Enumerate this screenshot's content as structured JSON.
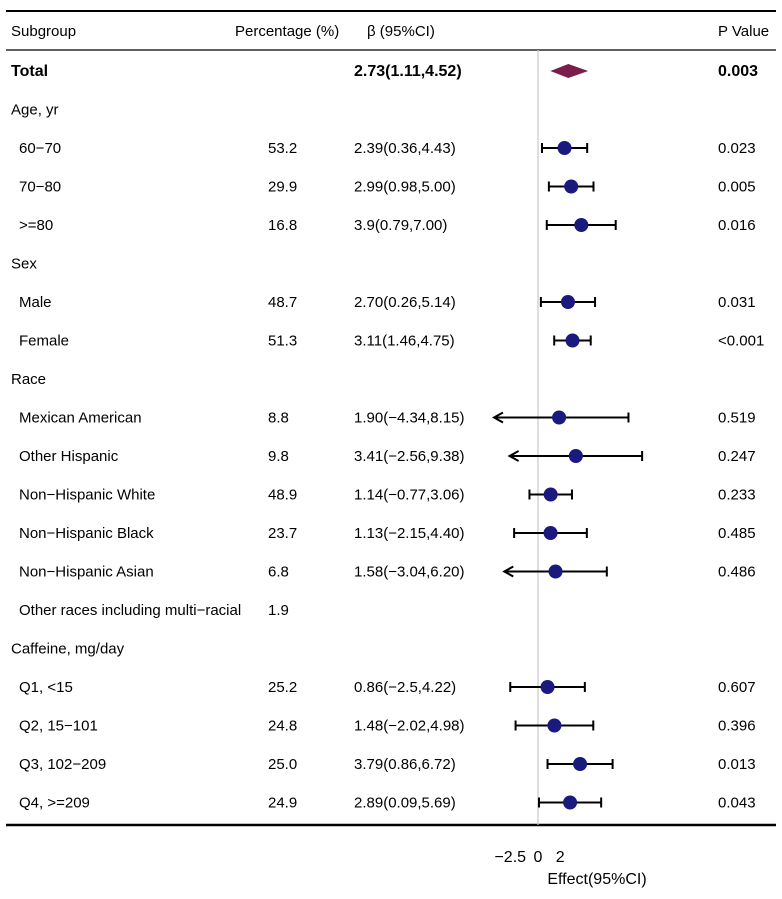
{
  "headers": {
    "subgroup": "Subgroup",
    "percentage": "Percentage (%)",
    "beta": "β (95%CI)",
    "pvalue": "P Value"
  },
  "chart_data": {
    "type": "forest",
    "xlabel": "Effect(95%CI)",
    "ticks": [
      {
        "value": -2.5,
        "label": "−2.5"
      },
      {
        "value": 0,
        "label": "0"
      },
      {
        "value": 2,
        "label": "2"
      }
    ],
    "reference_line": 0,
    "colors": {
      "point": "#1a1a7e",
      "total": "#7b1c4a",
      "reference": "#c8c8c8"
    },
    "rows": [
      {
        "kind": "total",
        "label": "Total",
        "pct": "",
        "ci": "2.73(1.11,4.52)",
        "p": "0.003",
        "est": 2.73,
        "lo": 1.11,
        "hi": 4.52
      },
      {
        "kind": "group",
        "label": "Age, yr"
      },
      {
        "kind": "item",
        "label": "60−70",
        "pct": "53.2",
        "ci": "2.39(0.36,4.43)",
        "p": "0.023",
        "est": 2.39,
        "lo": 0.36,
        "hi": 4.43
      },
      {
        "kind": "item",
        "label": "70−80",
        "pct": "29.9",
        "ci": "2.99(0.98,5.00)",
        "p": "0.005",
        "est": 2.99,
        "lo": 0.98,
        "hi": 5.0
      },
      {
        "kind": "item",
        "label": ">=80",
        "pct": "16.8",
        "ci": "3.9(0.79,7.00)",
        "p": "0.016",
        "est": 3.9,
        "lo": 0.79,
        "hi": 7.0
      },
      {
        "kind": "group",
        "label": "Sex"
      },
      {
        "kind": "item",
        "label": "Male",
        "pct": "48.7",
        "ci": "2.70(0.26,5.14)",
        "p": "0.031",
        "est": 2.7,
        "lo": 0.26,
        "hi": 5.14
      },
      {
        "kind": "item",
        "label": "Female",
        "pct": "51.3",
        "ci": "3.11(1.46,4.75)",
        "p": "<0.001",
        "est": 3.11,
        "lo": 1.46,
        "hi": 4.75
      },
      {
        "kind": "group",
        "label": "Race"
      },
      {
        "kind": "item",
        "label": "Mexican American",
        "pct": "8.8",
        "ci": "1.90(−4.34,8.15)",
        "p": "0.519",
        "est": 1.9,
        "lo": -4.34,
        "hi": 8.15,
        "arrow_left": true
      },
      {
        "kind": "item",
        "label": "Other Hispanic",
        "pct": "9.8",
        "ci": "3.41(−2.56,9.38)",
        "p": "0.247",
        "est": 3.41,
        "lo": -2.56,
        "hi": 9.38,
        "arrow_left": true
      },
      {
        "kind": "item",
        "label": "Non−Hispanic White",
        "pct": "48.9",
        "ci": "1.14(−0.77,3.06)",
        "p": "0.233",
        "est": 1.14,
        "lo": -0.77,
        "hi": 3.06
      },
      {
        "kind": "item",
        "label": "Non−Hispanic Black",
        "pct": "23.7",
        "ci": "1.13(−2.15,4.40)",
        "p": "0.485",
        "est": 1.13,
        "lo": -2.15,
        "hi": 4.4
      },
      {
        "kind": "item",
        "label": "Non−Hispanic Asian",
        "pct": "6.8",
        "ci": "1.58(−3.04,6.20)",
        "p": "0.486",
        "est": 1.58,
        "lo": -3.04,
        "hi": 6.2,
        "arrow_left": true
      },
      {
        "kind": "item",
        "label": "Other races including multi−racial",
        "pct": "1.9",
        "ci": "",
        "p": ""
      },
      {
        "kind": "group",
        "label": "Caffeine, mg/day"
      },
      {
        "kind": "item",
        "label": "Q1, <15",
        "pct": "25.2",
        "ci": "0.86(−2.5,4.22)",
        "p": "0.607",
        "est": 0.86,
        "lo": -2.5,
        "hi": 4.22
      },
      {
        "kind": "item",
        "label": "Q2, 15−101",
        "pct": "24.8",
        "ci": "1.48(−2.02,4.98)",
        "p": "0.396",
        "est": 1.48,
        "lo": -2.02,
        "hi": 4.98
      },
      {
        "kind": "item",
        "label": "Q3, 102−209",
        "pct": "25.0",
        "ci": "3.79(0.86,6.72)",
        "p": "0.013",
        "est": 3.79,
        "lo": 0.86,
        "hi": 6.72
      },
      {
        "kind": "item",
        "label": "Q4, >=209",
        "pct": "24.9",
        "ci": "2.89(0.09,5.69)",
        "p": "0.043",
        "est": 2.89,
        "lo": 0.09,
        "hi": 5.69
      }
    ]
  }
}
